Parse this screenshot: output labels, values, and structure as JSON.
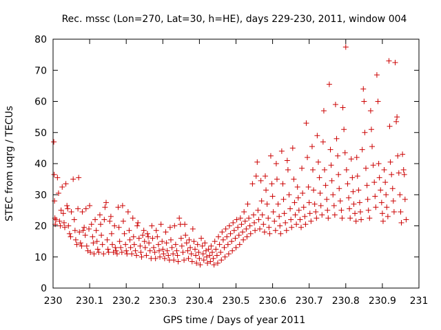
{
  "chart_data": {
    "type": "scatter",
    "title": "Rec. mssc (Lon=270, Lat=30, h=HE), days 229-230, 2011, window 004",
    "xlabel": "GPS time / Days of year 2011",
    "ylabel": "STEC from uqrg / TECUs",
    "xlim": [
      230,
      231
    ],
    "ylim": [
      0,
      80
    ],
    "x_ticks": [
      "230",
      "230.1",
      "230.2",
      "230.3",
      "230.4",
      "230.5",
      "230.6",
      "230.7",
      "230.8",
      "230.9",
      "231"
    ],
    "y_ticks": [
      "0",
      "10",
      "20",
      "30",
      "40",
      "50",
      "60",
      "70",
      "80"
    ],
    "x_tick_values": [
      230,
      230.1,
      230.2,
      230.3,
      230.4,
      230.5,
      230.6,
      230.7,
      230.8,
      230.9,
      231
    ],
    "y_tick_values": [
      0,
      10,
      20,
      30,
      40,
      50,
      60,
      70,
      80
    ],
    "grid": false,
    "marker": "plus",
    "color": "#cc0000",
    "points": [
      [
        230.002,
        47.0
      ],
      [
        230.003,
        36.5
      ],
      [
        230.004,
        28.0
      ],
      [
        230.005,
        22.5
      ],
      [
        230.006,
        20.5
      ],
      [
        230.008,
        22.0
      ],
      [
        230.012,
        35.5
      ],
      [
        230.015,
        30.5
      ],
      [
        230.018,
        21.5
      ],
      [
        230.02,
        20.0
      ],
      [
        230.022,
        25.0
      ],
      [
        230.025,
        32.5
      ],
      [
        230.028,
        24.0
      ],
      [
        230.03,
        21.0
      ],
      [
        230.032,
        19.5
      ],
      [
        230.035,
        33.5
      ],
      [
        230.038,
        26.5
      ],
      [
        230.04,
        25.5
      ],
      [
        230.042,
        20.0
      ],
      [
        230.045,
        17.5
      ],
      [
        230.048,
        16.5
      ],
      [
        230.05,
        24.5
      ],
      [
        230.055,
        35.0
      ],
      [
        230.058,
        22.0
      ],
      [
        230.06,
        18.5
      ],
      [
        230.062,
        15.5
      ],
      [
        230.065,
        14.0
      ],
      [
        230.068,
        25.5
      ],
      [
        230.07,
        35.5
      ],
      [
        230.072,
        18.0
      ],
      [
        230.075,
        14.5
      ],
      [
        230.078,
        13.5
      ],
      [
        230.08,
        24.5
      ],
      [
        230.082,
        18.5
      ],
      [
        230.085,
        19.5
      ],
      [
        230.088,
        17.0
      ],
      [
        230.09,
        25.5
      ],
      [
        230.092,
        13.5
      ],
      [
        230.095,
        12.0
      ],
      [
        230.098,
        19.0
      ],
      [
        230.1,
        26.5
      ],
      [
        230.102,
        11.5
      ],
      [
        230.105,
        20.5
      ],
      [
        230.108,
        16.5
      ],
      [
        230.11,
        14.5
      ],
      [
        230.112,
        11.0
      ],
      [
        230.115,
        22.0
      ],
      [
        230.118,
        18.5
      ],
      [
        230.12,
        15.0
      ],
      [
        230.122,
        12.5
      ],
      [
        230.125,
        11.5
      ],
      [
        230.128,
        23.5
      ],
      [
        230.13,
        20.5
      ],
      [
        230.132,
        17.0
      ],
      [
        230.135,
        14.0
      ],
      [
        230.138,
        11.0
      ],
      [
        230.14,
        22.0
      ],
      [
        230.142,
        26.0
      ],
      [
        230.145,
        27.5
      ],
      [
        230.148,
        15.5
      ],
      [
        230.15,
        12.5
      ],
      [
        230.152,
        11.5
      ],
      [
        230.155,
        21.5
      ],
      [
        230.158,
        23.0
      ],
      [
        230.16,
        17.5
      ],
      [
        230.162,
        14.0
      ],
      [
        230.165,
        11.5
      ],
      [
        230.168,
        20.0
      ],
      [
        230.17,
        13.0
      ],
      [
        230.172,
        12.0
      ],
      [
        230.175,
        11.0
      ],
      [
        230.178,
        26.0
      ],
      [
        230.18,
        19.5
      ],
      [
        230.182,
        15.0
      ],
      [
        230.185,
        13.0
      ],
      [
        230.188,
        11.5
      ],
      [
        230.19,
        26.5
      ],
      [
        230.192,
        21.5
      ],
      [
        230.195,
        17.5
      ],
      [
        230.198,
        14.0
      ],
      [
        230.2,
        12.0
      ],
      [
        230.202,
        11.0
      ],
      [
        230.205,
        24.5
      ],
      [
        230.208,
        18.5
      ],
      [
        230.21,
        15.5
      ],
      [
        230.212,
        13.0
      ],
      [
        230.215,
        11.0
      ],
      [
        230.218,
        22.5
      ],
      [
        230.22,
        16.5
      ],
      [
        230.222,
        14.0
      ],
      [
        230.225,
        12.0
      ],
      [
        230.228,
        10.5
      ],
      [
        230.23,
        20.0
      ],
      [
        230.232,
        21.0
      ],
      [
        230.235,
        16.0
      ],
      [
        230.238,
        13.5
      ],
      [
        230.24,
        11.5
      ],
      [
        230.242,
        10.0
      ],
      [
        230.245,
        17.0
      ],
      [
        230.248,
        18.5
      ],
      [
        230.25,
        15.0
      ],
      [
        230.252,
        13.0
      ],
      [
        230.255,
        10.5
      ],
      [
        230.258,
        17.5
      ],
      [
        230.26,
        16.5
      ],
      [
        230.262,
        14.5
      ],
      [
        230.265,
        12.0
      ],
      [
        230.268,
        9.5
      ],
      [
        230.27,
        20.0
      ],
      [
        230.272,
        16.0
      ],
      [
        230.275,
        13.0
      ],
      [
        230.278,
        11.5
      ],
      [
        230.28,
        9.5
      ],
      [
        230.282,
        18.5
      ],
      [
        230.285,
        16.5
      ],
      [
        230.288,
        14.0
      ],
      [
        230.29,
        12.0
      ],
      [
        230.292,
        10.0
      ],
      [
        230.295,
        20.5
      ],
      [
        230.298,
        15.0
      ],
      [
        230.3,
        12.5
      ],
      [
        230.302,
        11.0
      ],
      [
        230.305,
        9.5
      ],
      [
        230.308,
        18.0
      ],
      [
        230.31,
        14.5
      ],
      [
        230.312,
        12.0
      ],
      [
        230.315,
        10.5
      ],
      [
        230.318,
        9.0
      ],
      [
        230.32,
        19.5
      ],
      [
        230.322,
        15.5
      ],
      [
        230.325,
        13.0
      ],
      [
        230.328,
        11.0
      ],
      [
        230.33,
        9.0
      ],
      [
        230.332,
        20.0
      ],
      [
        230.335,
        14.0
      ],
      [
        230.338,
        12.0
      ],
      [
        230.34,
        10.5
      ],
      [
        230.342,
        8.5
      ],
      [
        230.345,
        22.5
      ],
      [
        230.348,
        20.5
      ],
      [
        230.35,
        16.0
      ],
      [
        230.352,
        13.5
      ],
      [
        230.355,
        11.5
      ],
      [
        230.358,
        9.0
      ],
      [
        230.36,
        20.5
      ],
      [
        230.362,
        17.0
      ],
      [
        230.365,
        14.5
      ],
      [
        230.368,
        12.0
      ],
      [
        230.37,
        9.5
      ],
      [
        230.372,
        15.5
      ],
      [
        230.375,
        13.0
      ],
      [
        230.378,
        11.0
      ],
      [
        230.38,
        8.5
      ],
      [
        230.382,
        19.0
      ],
      [
        230.385,
        15.0
      ],
      [
        230.388,
        12.5
      ],
      [
        230.39,
        10.5
      ],
      [
        230.392,
        8.0
      ],
      [
        230.395,
        14.0
      ],
      [
        230.398,
        11.5
      ],
      [
        230.4,
        9.5
      ],
      [
        230.402,
        7.5
      ],
      [
        230.405,
        16.0
      ],
      [
        230.408,
        13.5
      ],
      [
        230.41,
        11.0
      ],
      [
        230.412,
        9.0
      ],
      [
        230.415,
        14.5
      ],
      [
        230.418,
        12.0
      ],
      [
        230.42,
        10.0
      ],
      [
        230.422,
        8.0
      ],
      [
        230.425,
        12.5
      ],
      [
        230.428,
        10.5
      ],
      [
        230.43,
        8.5
      ],
      [
        230.432,
        13.5
      ],
      [
        230.435,
        11.5
      ],
      [
        230.438,
        9.5
      ],
      [
        230.44,
        7.5
      ],
      [
        230.442,
        15.0
      ],
      [
        230.445,
        12.5
      ],
      [
        230.448,
        10.5
      ],
      [
        230.45,
        8.0
      ],
      [
        230.452,
        16.5
      ],
      [
        230.455,
        14.0
      ],
      [
        230.458,
        11.5
      ],
      [
        230.46,
        9.0
      ],
      [
        230.462,
        18.0
      ],
      [
        230.465,
        15.5
      ],
      [
        230.468,
        13.0
      ],
      [
        230.47,
        10.0
      ],
      [
        230.472,
        19.0
      ],
      [
        230.475,
        16.5
      ],
      [
        230.478,
        14.0
      ],
      [
        230.48,
        11.0
      ],
      [
        230.482,
        20.0
      ],
      [
        230.485,
        17.5
      ],
      [
        230.488,
        15.0
      ],
      [
        230.49,
        12.0
      ],
      [
        230.492,
        21.0
      ],
      [
        230.495,
        18.5
      ],
      [
        230.498,
        16.0
      ],
      [
        230.5,
        13.0
      ],
      [
        230.502,
        22.0
      ],
      [
        230.505,
        19.5
      ],
      [
        230.508,
        17.0
      ],
      [
        230.51,
        14.0
      ],
      [
        230.512,
        22.5
      ],
      [
        230.515,
        20.5
      ],
      [
        230.518,
        18.0
      ],
      [
        230.52,
        15.5
      ],
      [
        230.522,
        24.5
      ],
      [
        230.525,
        21.5
      ],
      [
        230.528,
        19.0
      ],
      [
        230.53,
        16.5
      ],
      [
        230.532,
        27.0
      ],
      [
        230.535,
        22.5
      ],
      [
        230.538,
        20.0
      ],
      [
        230.54,
        17.5
      ],
      [
        230.545,
        33.5
      ],
      [
        230.548,
        23.5
      ],
      [
        230.55,
        21.0
      ],
      [
        230.552,
        18.5
      ],
      [
        230.555,
        36.0
      ],
      [
        230.558,
        40.5
      ],
      [
        230.56,
        25.0
      ],
      [
        230.562,
        22.0
      ],
      [
        230.565,
        19.0
      ],
      [
        230.568,
        34.5
      ],
      [
        230.57,
        28.0
      ],
      [
        230.572,
        23.5
      ],
      [
        230.575,
        20.5
      ],
      [
        230.578,
        18.0
      ],
      [
        230.58,
        36.0
      ],
      [
        230.582,
        31.5
      ],
      [
        230.585,
        27.0
      ],
      [
        230.588,
        22.5
      ],
      [
        230.59,
        19.5
      ],
      [
        230.592,
        17.5
      ],
      [
        230.595,
        42.5
      ],
      [
        230.598,
        33.5
      ],
      [
        230.6,
        29.5
      ],
      [
        230.602,
        24.5
      ],
      [
        230.605,
        21.5
      ],
      [
        230.608,
        18.5
      ],
      [
        230.61,
        40.0
      ],
      [
        230.612,
        35.0
      ],
      [
        230.615,
        27.0
      ],
      [
        230.618,
        23.0
      ],
      [
        230.62,
        20.0
      ],
      [
        230.622,
        17.5
      ],
      [
        230.625,
        44.0
      ],
      [
        230.628,
        33.5
      ],
      [
        230.63,
        28.5
      ],
      [
        230.632,
        24.0
      ],
      [
        230.635,
        21.0
      ],
      [
        230.638,
        18.5
      ],
      [
        230.64,
        41.0
      ],
      [
        230.642,
        38.0
      ],
      [
        230.645,
        30.0
      ],
      [
        230.648,
        25.5
      ],
      [
        230.65,
        22.0
      ],
      [
        230.652,
        19.5
      ],
      [
        230.655,
        45.0
      ],
      [
        230.658,
        35.0
      ],
      [
        230.66,
        27.5
      ],
      [
        230.662,
        23.5
      ],
      [
        230.665,
        20.5
      ],
      [
        230.668,
        32.5
      ],
      [
        230.67,
        29.0
      ],
      [
        230.672,
        25.0
      ],
      [
        230.675,
        22.0
      ],
      [
        230.678,
        19.5
      ],
      [
        230.68,
        38.5
      ],
      [
        230.682,
        30.5
      ],
      [
        230.685,
        26.0
      ],
      [
        230.688,
        23.0
      ],
      [
        230.69,
        20.5
      ],
      [
        230.692,
        53.0
      ],
      [
        230.695,
        42.0
      ],
      [
        230.698,
        32.5
      ],
      [
        230.7,
        27.5
      ],
      [
        230.702,
        24.0
      ],
      [
        230.705,
        21.5
      ],
      [
        230.708,
        45.5
      ],
      [
        230.71,
        38.0
      ],
      [
        230.712,
        31.5
      ],
      [
        230.715,
        27.0
      ],
      [
        230.718,
        24.5
      ],
      [
        230.72,
        22.5
      ],
      [
        230.722,
        49.0
      ],
      [
        230.725,
        40.5
      ],
      [
        230.728,
        35.5
      ],
      [
        230.73,
        30.5
      ],
      [
        230.732,
        26.5
      ],
      [
        230.735,
        23.5
      ],
      [
        230.738,
        47.0
      ],
      [
        230.74,
        57.0
      ],
      [
        230.742,
        38.0
      ],
      [
        230.745,
        33.0
      ],
      [
        230.748,
        28.5
      ],
      [
        230.75,
        25.0
      ],
      [
        230.752,
        22.5
      ],
      [
        230.755,
        65.5
      ],
      [
        230.758,
        44.5
      ],
      [
        230.76,
        39.5
      ],
      [
        230.762,
        34.5
      ],
      [
        230.765,
        30.0
      ],
      [
        230.768,
        26.5
      ],
      [
        230.77,
        23.5
      ],
      [
        230.772,
        59.0
      ],
      [
        230.775,
        48.0
      ],
      [
        230.778,
        42.5
      ],
      [
        230.78,
        36.5
      ],
      [
        230.782,
        32.0
      ],
      [
        230.785,
        28.0
      ],
      [
        230.788,
        25.0
      ],
      [
        230.79,
        22.5
      ],
      [
        230.792,
        58.0
      ],
      [
        230.795,
        51.0
      ],
      [
        230.798,
        43.5
      ],
      [
        230.8,
        77.5
      ],
      [
        230.802,
        38.0
      ],
      [
        230.805,
        33.5
      ],
      [
        230.808,
        29.0
      ],
      [
        230.81,
        25.5
      ],
      [
        230.812,
        22.5
      ],
      [
        230.815,
        41.5
      ],
      [
        230.818,
        35.5
      ],
      [
        230.82,
        31.0
      ],
      [
        230.822,
        27.0
      ],
      [
        230.825,
        24.0
      ],
      [
        230.828,
        21.5
      ],
      [
        230.83,
        42.0
      ],
      [
        230.832,
        36.0
      ],
      [
        230.835,
        31.5
      ],
      [
        230.838,
        27.5
      ],
      [
        230.84,
        24.5
      ],
      [
        230.842,
        22.0
      ],
      [
        230.845,
        44.5
      ],
      [
        230.848,
        64.0
      ],
      [
        230.85,
        60.0
      ],
      [
        230.852,
        50.0
      ],
      [
        230.855,
        38.5
      ],
      [
        230.858,
        33.0
      ],
      [
        230.86,
        28.5
      ],
      [
        230.862,
        25.0
      ],
      [
        230.865,
        22.5
      ],
      [
        230.868,
        57.0
      ],
      [
        230.87,
        51.0
      ],
      [
        230.872,
        45.5
      ],
      [
        230.875,
        39.5
      ],
      [
        230.878,
        34.0
      ],
      [
        230.88,
        29.5
      ],
      [
        230.882,
        26.0
      ],
      [
        230.885,
        68.5
      ],
      [
        230.888,
        60.0
      ],
      [
        230.89,
        40.0
      ],
      [
        230.892,
        35.5
      ],
      [
        230.895,
        31.5
      ],
      [
        230.898,
        27.5
      ],
      [
        230.9,
        24.0
      ],
      [
        230.902,
        21.5
      ],
      [
        230.905,
        38.0
      ],
      [
        230.908,
        34.0
      ],
      [
        230.91,
        30.0
      ],
      [
        230.912,
        26.0
      ],
      [
        230.915,
        23.0
      ],
      [
        230.918,
        73.0
      ],
      [
        230.92,
        52.0
      ],
      [
        230.922,
        40.5
      ],
      [
        230.925,
        36.5
      ],
      [
        230.928,
        32.0
      ],
      [
        230.93,
        28.0
      ],
      [
        230.932,
        24.5
      ],
      [
        230.935,
        72.5
      ],
      [
        230.938,
        53.5
      ],
      [
        230.94,
        55.0
      ],
      [
        230.942,
        42.5
      ],
      [
        230.945,
        37.0
      ],
      [
        230.948,
        30.0
      ],
      [
        230.95,
        24.5
      ],
      [
        230.952,
        21.0
      ],
      [
        230.955,
        43.0
      ],
      [
        230.958,
        38.0
      ],
      [
        230.96,
        36.5
      ],
      [
        230.962,
        28.5
      ],
      [
        230.965,
        22.0
      ]
    ]
  }
}
